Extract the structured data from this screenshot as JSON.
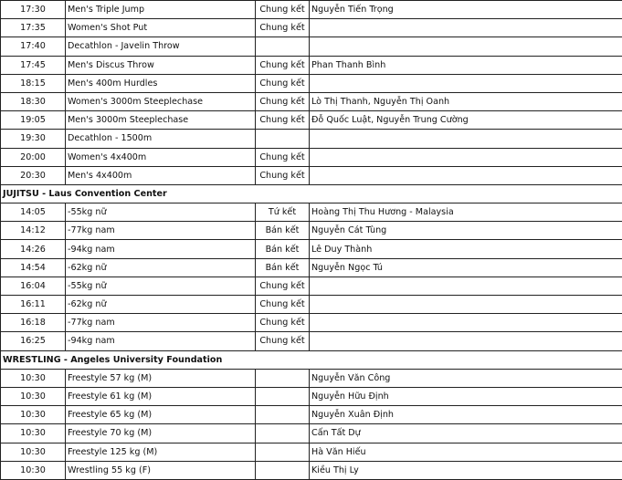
{
  "groups": [
    {
      "header": "",
      "rows": [
        {
          "time": "17:30",
          "event": "Men's Triple Jump",
          "round": "Chung kết",
          "athletes": "Nguyễn Tiến Trọng"
        },
        {
          "time": "17:35",
          "event": "Women's Shot Put",
          "round": "Chung kết",
          "athletes": ""
        },
        {
          "time": "17:40",
          "event": "Decathlon - Javelin Throw",
          "round": "",
          "athletes": ""
        },
        {
          "time": "17:45",
          "event": "Men's Discus Throw",
          "round": "Chung kết",
          "athletes": "Phan Thanh Bình"
        },
        {
          "time": "18:15",
          "event": "Men's 400m Hurdles",
          "round": "Chung kết",
          "athletes": ""
        },
        {
          "time": "18:30",
          "event": "Women's 3000m Steeplechase",
          "round": "Chung kết",
          "athletes": "Lò Thị Thanh, Nguyễn Thị Oanh"
        },
        {
          "time": "19:05",
          "event": "Men's 3000m Steeplechase",
          "round": "Chung kết",
          "athletes": "Đỗ Quốc Luật, Nguyễn Trung Cường"
        },
        {
          "time": "19:30",
          "event": "Decathlon - 1500m",
          "round": "",
          "athletes": ""
        },
        {
          "time": "20:00",
          "event": "Women's 4x400m",
          "round": "Chung kết",
          "athletes": ""
        },
        {
          "time": "20:30",
          "event": "Men's 4x400m",
          "round": "Chung kết",
          "athletes": ""
        }
      ]
    },
    {
      "header": "JUJITSU - Laus Convention Center",
      "rows": [
        {
          "time": "14:05",
          "event": "-55kg nữ",
          "round": "Tứ kết",
          "athletes": "Hoàng Thị Thu Hương - Malaysia"
        },
        {
          "time": "14:12",
          "event": "-77kg nam",
          "round": "Bán kết",
          "athletes": "Nguyễn Cát Tùng"
        },
        {
          "time": "14:26",
          "event": "-94kg nam",
          "round": "Bán kết",
          "athletes": "Lê Duy Thành"
        },
        {
          "time": "14:54",
          "event": "-62kg nữ",
          "round": "Bán kết",
          "athletes": "Nguyễn Ngọc Tú"
        },
        {
          "time": "16:04",
          "event": "-55kg nữ",
          "round": "Chung kết",
          "athletes": ""
        },
        {
          "time": "16:11",
          "event": "-62kg nữ",
          "round": "Chung kết",
          "athletes": ""
        },
        {
          "time": "16:18",
          "event": "-77kg nam",
          "round": "Chung kết",
          "athletes": ""
        },
        {
          "time": "16:25",
          "event": "-94kg nam",
          "round": "Chung kết",
          "athletes": ""
        }
      ]
    },
    {
      "header": "WRESTLING - Angeles University Foundation",
      "rows": [
        {
          "time": "10:30",
          "event": "Freestyle 57 kg (M)",
          "round": "",
          "athletes": "Nguyễn Văn Công"
        },
        {
          "time": "10:30",
          "event": "Freestyle 61 kg (M)",
          "round": "",
          "athletes": "Nguyễn Hữu Định"
        },
        {
          "time": "10:30",
          "event": "Freestyle 65 kg (M)",
          "round": "",
          "athletes": "Nguyễn Xuân Định"
        },
        {
          "time": "10:30",
          "event": "Freestyle 70 kg (M)",
          "round": "",
          "athletes": "Cấn Tất Dự"
        },
        {
          "time": "10:30",
          "event": "Freestyle 125 kg (M)",
          "round": "",
          "athletes": "Hà Văn Hiếu"
        },
        {
          "time": "10:30",
          "event": "Wrestling 55 kg (F)",
          "round": "",
          "athletes": "Kiều Thị Ly"
        }
      ]
    }
  ]
}
